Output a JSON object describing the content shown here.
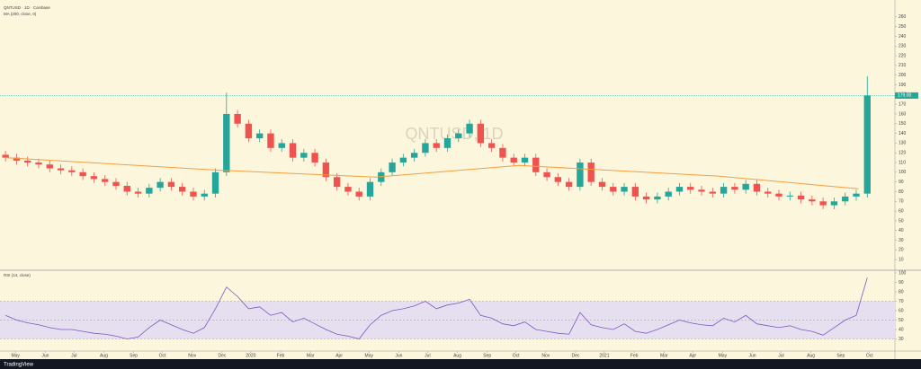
{
  "chart_data": [
    {
      "type": "candlestick",
      "title": "QNTUSD, 1D",
      "legend": "QNTUSD · 1D · Coinbase",
      "ma_label": "MA (200, close, 0)",
      "up_color": "#26a69a",
      "down_color": "#ef5350",
      "ma_color": "#f59e42",
      "xlim": [
        -0.5,
        80.5
      ],
      "ylim": [
        0,
        270
      ],
      "yticks": [
        10,
        20,
        30,
        40,
        50,
        60,
        70,
        80,
        90,
        100,
        110,
        120,
        130,
        140,
        150,
        160,
        170,
        180,
        190,
        200,
        210,
        220,
        230,
        240,
        250,
        260
      ],
      "last_price": {
        "value": 179,
        "label": "179.00"
      },
      "open": [
        118,
        115,
        112,
        110,
        108,
        104,
        102,
        100,
        96,
        93,
        90,
        86,
        80,
        78,
        84,
        90,
        85,
        80,
        75,
        78,
        100,
        160,
        150,
        135,
        140,
        125,
        130,
        115,
        120,
        110,
        95,
        85,
        80,
        75,
        90,
        100,
        110,
        115,
        120,
        130,
        125,
        135,
        140,
        150,
        130,
        125,
        115,
        110,
        115,
        100,
        95,
        90,
        85,
        110,
        90,
        85,
        80,
        85,
        75,
        72,
        75,
        80,
        85,
        82,
        80,
        78,
        85,
        82,
        88,
        80,
        78,
        75,
        76,
        72,
        70,
        66,
        70,
        75,
        78
      ],
      "high": [
        122,
        119,
        116,
        114,
        112,
        108,
        106,
        104,
        100,
        97,
        94,
        90,
        84,
        88,
        94,
        94,
        89,
        84,
        82,
        104,
        182,
        164,
        154,
        144,
        144,
        134,
        134,
        124,
        124,
        114,
        99,
        89,
        84,
        94,
        104,
        114,
        119,
        124,
        134,
        134,
        139,
        144,
        154,
        154,
        134,
        129,
        119,
        119,
        119,
        104,
        99,
        94,
        114,
        114,
        94,
        89,
        89,
        89,
        79,
        79,
        84,
        89,
        89,
        86,
        84,
        89,
        89,
        92,
        92,
        84,
        82,
        80,
        80,
        76,
        74,
        74,
        79,
        82,
        199
      ],
      "low": [
        111,
        108,
        106,
        104,
        100,
        98,
        96,
        92,
        89,
        86,
        82,
        76,
        74,
        74,
        80,
        81,
        76,
        71,
        71,
        74,
        96,
        146,
        131,
        131,
        121,
        121,
        111,
        111,
        106,
        91,
        81,
        76,
        71,
        71,
        86,
        96,
        106,
        111,
        116,
        121,
        121,
        131,
        136,
        126,
        121,
        111,
        106,
        106,
        96,
        91,
        86,
        81,
        81,
        86,
        81,
        76,
        76,
        71,
        68,
        68,
        71,
        76,
        78,
        76,
        74,
        74,
        78,
        78,
        76,
        74,
        71,
        71,
        68,
        66,
        62,
        62,
        66,
        71,
        74
      ],
      "close": [
        115,
        112,
        110,
        108,
        104,
        102,
        100,
        96,
        93,
        90,
        86,
        80,
        78,
        84,
        90,
        85,
        80,
        75,
        78,
        100,
        160,
        150,
        135,
        140,
        125,
        130,
        115,
        120,
        110,
        95,
        85,
        80,
        75,
        90,
        100,
        110,
        115,
        120,
        130,
        125,
        135,
        140,
        150,
        130,
        125,
        115,
        110,
        115,
        100,
        95,
        90,
        85,
        110,
        90,
        85,
        80,
        85,
        75,
        72,
        75,
        80,
        85,
        82,
        80,
        78,
        85,
        82,
        88,
        80,
        78,
        75,
        76,
        72,
        70,
        66,
        70,
        75,
        78,
        179
      ],
      "ma": {
        "x": [
          0,
          19.5,
          33.5,
          46.5,
          64.5,
          77.2
        ],
        "values": [
          115,
          102,
          95,
          107,
          96,
          83
        ]
      }
    },
    {
      "type": "line",
      "title": "RSI (14, close)",
      "color": "#7e57c2",
      "band_color": "#e6dff0",
      "upper": 70,
      "middle": 50,
      "lower": 30,
      "xlim": [
        -0.5,
        80.5
      ],
      "ylim": [
        20,
        100
      ],
      "yticks": [
        30,
        40,
        50,
        60,
        70,
        80,
        90,
        100
      ],
      "xticks": [
        {
          "value": 0.9,
          "label": "May"
        },
        {
          "value": 3.6,
          "label": "Jun"
        },
        {
          "value": 6.2,
          "label": "Jul"
        },
        {
          "value": 8.9,
          "label": "Aug"
        },
        {
          "value": 11.6,
          "label": "Sep"
        },
        {
          "value": 14.2,
          "label": "Oct"
        },
        {
          "value": 16.9,
          "label": "Nov"
        },
        {
          "value": 19.6,
          "label": "Dec"
        },
        {
          "value": 22.2,
          "label": "2020"
        },
        {
          "value": 24.9,
          "label": "Feb"
        },
        {
          "value": 27.6,
          "label": "Mar"
        },
        {
          "value": 30.2,
          "label": "Apr"
        },
        {
          "value": 32.9,
          "label": "May"
        },
        {
          "value": 35.6,
          "label": "Jun"
        },
        {
          "value": 38.2,
          "label": "Jul"
        },
        {
          "value": 40.9,
          "label": "Aug"
        },
        {
          "value": 43.6,
          "label": "Sep"
        },
        {
          "value": 46.2,
          "label": "Oct"
        },
        {
          "value": 48.9,
          "label": "Nov"
        },
        {
          "value": 51.6,
          "label": "Dec"
        },
        {
          "value": 54.2,
          "label": "2021"
        },
        {
          "value": 56.9,
          "label": "Feb"
        },
        {
          "value": 59.6,
          "label": "Mar"
        },
        {
          "value": 62.2,
          "label": "Apr"
        },
        {
          "value": 64.9,
          "label": "May"
        },
        {
          "value": 67.6,
          "label": "Jun"
        },
        {
          "value": 70.2,
          "label": "Jul"
        },
        {
          "value": 72.9,
          "label": "Aug"
        },
        {
          "value": 75.6,
          "label": "Sep"
        },
        {
          "value": 78.2,
          "label": "Oct"
        }
      ],
      "values": [
        55,
        50,
        47,
        45,
        42,
        40,
        40,
        38,
        36,
        35,
        33,
        30,
        32,
        42,
        50,
        45,
        40,
        36,
        42,
        62,
        85,
        75,
        62,
        64,
        55,
        58,
        48,
        52,
        46,
        40,
        35,
        33,
        30,
        45,
        55,
        60,
        62,
        65,
        70,
        62,
        66,
        68,
        72,
        55,
        52,
        46,
        44,
        48,
        40,
        38,
        36,
        35,
        58,
        45,
        42,
        40,
        46,
        38,
        36,
        40,
        45,
        50,
        47,
        45,
        44,
        52,
        48,
        55,
        46,
        44,
        42,
        44,
        40,
        38,
        34,
        42,
        50,
        55,
        95
      ]
    }
  ],
  "footer": "TradingView"
}
